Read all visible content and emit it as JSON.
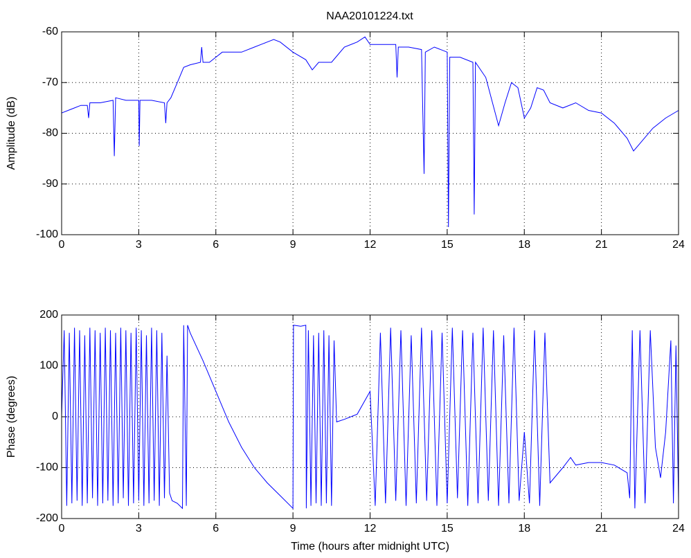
{
  "chart_data": [
    {
      "type": "line",
      "title": "NAA20101224.txt",
      "ylabel": "Amplitude (dB)",
      "xlim": [
        0,
        24
      ],
      "ylim": [
        -100,
        -60
      ],
      "xticks": [
        0,
        3,
        6,
        9,
        12,
        15,
        18,
        21,
        24
      ],
      "yticks": [
        -100,
        -90,
        -80,
        -70,
        -60
      ],
      "grid": true,
      "series": [
        {
          "color": "#0000ff",
          "x": [
            0,
            0.25,
            0.5,
            0.75,
            1.0,
            1.05,
            1.1,
            1.5,
            2.0,
            2.05,
            2.1,
            2.5,
            3.0,
            3.02,
            3.05,
            3.5,
            4.0,
            4.05,
            4.1,
            4.25,
            4.5,
            4.75,
            5.0,
            5.4,
            5.45,
            5.5,
            5.75,
            6.0,
            6.25,
            6.5,
            7.0,
            7.5,
            8.0,
            8.25,
            8.5,
            9.0,
            9.5,
            9.75,
            10.0,
            10.5,
            10.75,
            11.0,
            11.5,
            11.8,
            12.0,
            12.5,
            13.0,
            13.05,
            13.1,
            13.5,
            14.0,
            14.1,
            14.15,
            14.5,
            15.0,
            15.05,
            15.1,
            15.5,
            16.0,
            16.05,
            16.1,
            16.5,
            17.0,
            17.25,
            17.5,
            17.75,
            18.0,
            18.25,
            18.5,
            18.75,
            19.0,
            19.5,
            20.0,
            20.5,
            21.0,
            21.5,
            22.0,
            22.25,
            22.5,
            23.0,
            23.5,
            24.0
          ],
          "values": [
            -76,
            -75.5,
            -75,
            -74.5,
            -74.5,
            -77,
            -74,
            -74,
            -73.5,
            -84.5,
            -73,
            -73.5,
            -73.5,
            -82.5,
            -73.5,
            -73.5,
            -74,
            -78,
            -74,
            -73,
            -70,
            -67,
            -66.5,
            -66,
            -63,
            -66,
            -66,
            -65,
            -64,
            -64,
            -64,
            -63,
            -62,
            -61.5,
            -62,
            -64,
            -65.5,
            -67.5,
            -66,
            -66,
            -64.5,
            -63,
            -62,
            -61,
            -62.5,
            -62.5,
            -62.5,
            -69,
            -63,
            -63,
            -63.5,
            -88,
            -64,
            -63,
            -64,
            -98.5,
            -65,
            -65,
            -66,
            -96,
            -66,
            -69,
            -78.5,
            -74,
            -70,
            -71,
            -77,
            -75,
            -71,
            -71.5,
            -74,
            -75,
            -74,
            -75.5,
            -76,
            -78,
            -81,
            -83.5,
            -82,
            -79,
            -77,
            -75.5
          ]
        }
      ]
    },
    {
      "type": "line",
      "xlabel": "Time (hours after midnight UTC)",
      "ylabel": "Phase (degrees)",
      "xlim": [
        0,
        24
      ],
      "ylim": [
        -200,
        200
      ],
      "xticks": [
        0,
        3,
        6,
        9,
        12,
        15,
        18,
        21,
        24
      ],
      "yticks": [
        -200,
        -100,
        0,
        100,
        200
      ],
      "grid": true,
      "series": [
        {
          "color": "#0000ff",
          "x": [
            0,
            0.1,
            0.2,
            0.3,
            0.4,
            0.5,
            0.6,
            0.7,
            0.8,
            0.9,
            1.0,
            1.1,
            1.2,
            1.3,
            1.4,
            1.5,
            1.6,
            1.7,
            1.8,
            1.9,
            2.0,
            2.1,
            2.2,
            2.3,
            2.4,
            2.5,
            2.6,
            2.7,
            2.8,
            2.9,
            3.0,
            3.1,
            3.2,
            3.3,
            3.4,
            3.5,
            3.6,
            3.7,
            3.8,
            3.9,
            4.0,
            4.1,
            4.2,
            4.3,
            4.5,
            4.7,
            4.75,
            4.85,
            4.9,
            5.0,
            5.5,
            6.0,
            6.5,
            7.0,
            7.5,
            8.0,
            8.5,
            9.0,
            9.02,
            9.3,
            9.5,
            9.52,
            9.6,
            9.7,
            9.8,
            9.9,
            10.0,
            10.1,
            10.2,
            10.3,
            10.4,
            10.5,
            10.6,
            10.7,
            11.0,
            11.5,
            12.0,
            12.2,
            12.4,
            12.6,
            12.8,
            13.0,
            13.2,
            13.4,
            13.6,
            13.8,
            14.0,
            14.2,
            14.4,
            14.6,
            14.8,
            15.0,
            15.2,
            15.4,
            15.6,
            15.8,
            16.0,
            16.2,
            16.4,
            16.6,
            16.8,
            17.0,
            17.2,
            17.4,
            17.6,
            17.8,
            18.0,
            18.2,
            18.4,
            18.6,
            18.8,
            19.0,
            19.5,
            19.8,
            20.0,
            20.5,
            21.0,
            21.5,
            22.0,
            22.1,
            22.2,
            22.3,
            22.5,
            22.7,
            22.9,
            23.1,
            23.3,
            23.5,
            23.7,
            23.8,
            23.9,
            24.0
          ],
          "values": [
            0,
            170,
            -175,
            165,
            -170,
            175,
            -165,
            170,
            -175,
            160,
            -170,
            175,
            -160,
            170,
            -175,
            165,
            -170,
            175,
            -165,
            170,
            -175,
            165,
            -170,
            175,
            -160,
            170,
            -175,
            165,
            -170,
            175,
            -165,
            170,
            -175,
            160,
            -170,
            175,
            -165,
            170,
            -175,
            165,
            -160,
            120,
            -150,
            -165,
            -170,
            -180,
            180,
            -175,
            180,
            165,
            110,
            50,
            -10,
            -60,
            -100,
            -130,
            -155,
            -180,
            180,
            178,
            180,
            -180,
            170,
            -175,
            160,
            -170,
            165,
            -175,
            170,
            -170,
            160,
            -175,
            150,
            -10,
            -5,
            5,
            50,
            -175,
            165,
            -170,
            175,
            -165,
            170,
            -175,
            160,
            -170,
            175,
            -165,
            170,
            -175,
            165,
            -170,
            175,
            -160,
            170,
            -175,
            165,
            -170,
            175,
            -165,
            170,
            -175,
            160,
            -170,
            175,
            -165,
            -30,
            -170,
            170,
            -175,
            165,
            -130,
            -100,
            -80,
            -95,
            -90,
            -90,
            -95,
            -110,
            -160,
            170,
            -180,
            170,
            -170,
            170,
            -60,
            -120,
            -30,
            150,
            -170,
            140,
            -165
          ]
        }
      ]
    }
  ]
}
